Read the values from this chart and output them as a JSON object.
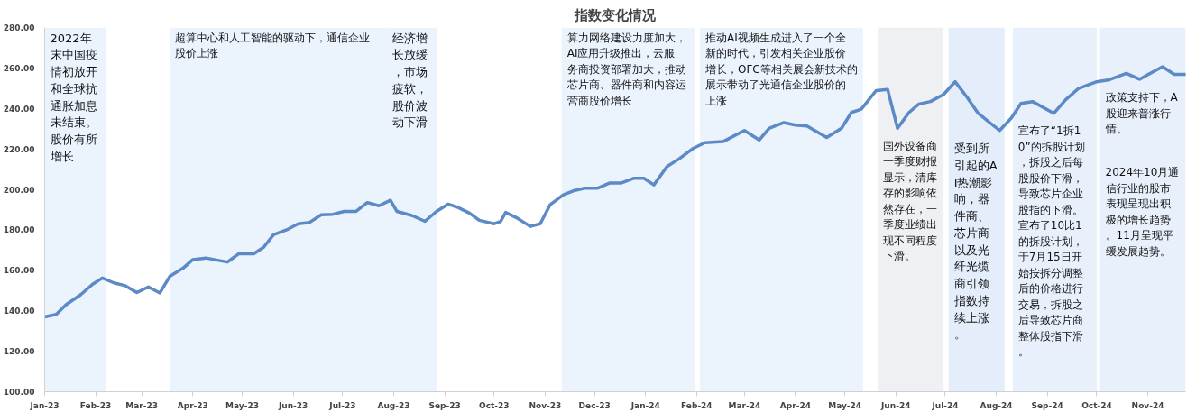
{
  "chart_data": {
    "type": "line",
    "title": "指数变化情况",
    "x": [
      "2023-01-01",
      "2023-01-08",
      "2023-01-14",
      "2023-01-23",
      "2023-01-30",
      "2023-02-05",
      "2023-02-12",
      "2023-02-19",
      "2023-02-26",
      "2023-03-05",
      "2023-03-12",
      "2023-03-18",
      "2023-03-26",
      "2023-04-01",
      "2023-04-09",
      "2023-04-16",
      "2023-04-22",
      "2023-04-29",
      "2023-05-08",
      "2023-05-14",
      "2023-05-20",
      "2023-05-28",
      "2023-06-04",
      "2023-06-11",
      "2023-06-18",
      "2023-06-25",
      "2023-07-02",
      "2023-07-09",
      "2023-07-16",
      "2023-07-23",
      "2023-07-30",
      "2023-08-03",
      "2023-08-12",
      "2023-08-20",
      "2023-08-27",
      "2023-09-03",
      "2023-09-09",
      "2023-09-16",
      "2023-09-22",
      "2023-10-01",
      "2023-10-05",
      "2023-10-08",
      "2023-10-15",
      "2023-10-23",
      "2023-10-29",
      "2023-11-04",
      "2023-11-12",
      "2023-11-19",
      "2023-11-25",
      "2023-12-03",
      "2023-12-10",
      "2023-12-17",
      "2023-12-25",
      "2023-12-31",
      "2024-01-06",
      "2024-01-14",
      "2024-01-21",
      "2024-01-30",
      "2024-02-06",
      "2024-02-17",
      "2024-03-01",
      "2024-03-10",
      "2024-03-16",
      "2024-03-25",
      "2024-04-01",
      "2024-04-08",
      "2024-04-20",
      "2024-04-29",
      "2024-05-05",
      "2024-05-11",
      "2024-05-20",
      "2024-05-27",
      "2024-06-02",
      "2024-06-09",
      "2024-06-15",
      "2024-06-22",
      "2024-06-30",
      "2024-07-07",
      "2024-07-14",
      "2024-07-21",
      "2024-08-03",
      "2024-08-10",
      "2024-08-16",
      "2024-08-23",
      "2024-09-05",
      "2024-09-12",
      "2024-09-20",
      "2024-10-01",
      "2024-10-08",
      "2024-10-19",
      "2024-10-27",
      "2024-11-10",
      "2024-11-17",
      "2024-11-24"
    ],
    "series": [
      {
        "color": "#5b8ac6",
        "values": [
          137,
          138.2,
          143,
          148,
          153,
          156.2,
          153.8,
          152.4,
          149,
          151.8,
          148.8,
          157,
          161,
          165.3,
          166.1,
          165,
          164.1,
          168.2,
          168.2,
          171.4,
          177.6,
          180,
          183,
          183.7,
          187.4,
          187.7,
          189.1,
          189.1,
          193.5,
          191.9,
          194.6,
          189.1,
          187.1,
          184.2,
          189.1,
          192.7,
          191.1,
          188.3,
          184.7,
          183,
          184.2,
          188.6,
          185.8,
          181.7,
          183,
          192.4,
          197.3,
          199.5,
          200.6,
          200.6,
          203.1,
          203.1,
          205.5,
          205.5,
          202.2,
          211.3,
          214.9,
          220.3,
          223.1,
          223.6,
          229.1,
          224.4,
          230.2,
          233,
          231.8,
          231.3,
          225.6,
          230.2,
          238,
          239.6,
          248.8,
          249.4,
          230.2,
          238,
          242.2,
          243.4,
          246.9,
          253.2,
          245.8,
          237.6,
          229.1,
          235.1,
          242.5,
          243.4,
          237.6,
          244.2,
          249.9,
          253.2,
          254,
          257.3,
          254.4,
          260.6,
          256.8,
          256.8
        ]
      }
    ],
    "xlim": [
      "2023-01-01",
      "2024-11-24"
    ],
    "xticks": [
      {
        "value": "2023-01-01",
        "label": "Jan-23"
      },
      {
        "value": "2023-02-01",
        "label": "Feb-23"
      },
      {
        "value": "2023-03-01",
        "label": "Mar-23"
      },
      {
        "value": "2023-04-01",
        "label": "Apr-23"
      },
      {
        "value": "2023-05-01",
        "label": "May-23"
      },
      {
        "value": "2023-06-01",
        "label": "Jun-23"
      },
      {
        "value": "2023-07-01",
        "label": "Jul-23"
      },
      {
        "value": "2023-08-01",
        "label": "Aug-23"
      },
      {
        "value": "2023-09-01",
        "label": "Sep-23"
      },
      {
        "value": "2023-10-01",
        "label": "Oct-23"
      },
      {
        "value": "2023-11-01",
        "label": "Nov-23"
      },
      {
        "value": "2023-12-01",
        "label": "Dec-23"
      },
      {
        "value": "2024-01-01",
        "label": "Jan-24"
      },
      {
        "value": "2024-02-01",
        "label": "Feb-24"
      },
      {
        "value": "2024-03-01",
        "label": "Mar-24"
      },
      {
        "value": "2024-04-01",
        "label": "Apr-24"
      },
      {
        "value": "2024-05-01",
        "label": "May-24"
      },
      {
        "value": "2024-06-01",
        "label": "Jun-24"
      },
      {
        "value": "2024-07-01",
        "label": "Jul-24"
      },
      {
        "value": "2024-08-01",
        "label": "Aug-24"
      },
      {
        "value": "2024-09-01",
        "label": "Sep-24"
      },
      {
        "value": "2024-10-01",
        "label": "Oct-24"
      },
      {
        "value": "2024-11-01",
        "label": "Nov-24"
      }
    ],
    "ylim": [
      100,
      280
    ],
    "yticks": [
      {
        "value": 100,
        "label": "100.00"
      },
      {
        "value": 120,
        "label": "120.00"
      },
      {
        "value": 140,
        "label": "140.00"
      },
      {
        "value": 160,
        "label": "160.00"
      },
      {
        "value": 180,
        "label": "180.00"
      },
      {
        "value": 200,
        "label": "200.00"
      },
      {
        "value": 220,
        "label": "220.00"
      },
      {
        "value": 240,
        "label": "240.00"
      },
      {
        "value": 260,
        "label": "260.00"
      },
      {
        "value": 280,
        "label": "280.00"
      }
    ],
    "grid": false,
    "marker": "none",
    "line_style": "solid",
    "bands": [
      {
        "axis": "x",
        "from": "2023-01-01",
        "to": "2023-02-07",
        "color": "#ebf3fd",
        "label": "2022年末中国疫情初放开和全球抗通胀加息未结束。股价有所增长"
      },
      {
        "axis": "x",
        "from": "2023-03-18",
        "to": "2023-07-28",
        "color": "#ebf3fd",
        "label": "超算中心和人工智能的驱动下，通信企业股价上涨"
      },
      {
        "axis": "x",
        "from": "2023-07-28",
        "to": "2023-08-27",
        "color": "#ebf3fd",
        "label": "经济增长放缓，市场疲软，股价波动下滑"
      },
      {
        "axis": "x",
        "from": "2023-11-11",
        "to": "2024-01-31",
        "color": "#ebf3fd",
        "label": "算力网络建设力度加大，AI应用升级推出，云服务商投资部署加大，推动芯片商、器件商和内容运营商股价增长"
      },
      {
        "axis": "x",
        "from": "2024-02-03",
        "to": "2024-05-12",
        "color": "#ebf3fd",
        "label": "推动AI视频生成进入了一个全新的时代，引发相关企业股价增长，OFC等相关展会新技术的展示带动了光通信企业股价的上涨"
      },
      {
        "axis": "x",
        "from": "2024-05-21",
        "to": "2024-06-30",
        "color": "#eef0f4",
        "label": "国外设备商一季度财报显示，清库存的影响依然存在，一季度业绩出现不同程度下滑。"
      },
      {
        "axis": "x",
        "from": "2024-07-03",
        "to": "2024-08-06",
        "color": "#e4edfa",
        "label": "受到所引起的AI热潮影响，器件商、芯片商以及光纤光缆商引领指数持续上涨。"
      },
      {
        "axis": "x",
        "from": "2024-08-11",
        "to": "2024-10-01",
        "color": "#e8f0fc",
        "label": "宣布了“1拆10”的拆股计划，拆股之后每股股价下滑，导致芯片企业股指的下滑。宣布了10比1的拆股计划，于7月15日开始按拆分调整后的价格进行交易，拆股之后导致芯片商整体股指下滑。"
      },
      {
        "axis": "x",
        "from": "2024-10-03",
        "to": "2024-11-24",
        "color": "#e8f0fc",
        "label": "政策支持下，A股迎来普涨行情。"
      }
    ],
    "annotations": [
      "2024年10月通信行业的股市表现呈现出积极的增长趋势。11月呈现平缓发展趋势。"
    ]
  }
}
